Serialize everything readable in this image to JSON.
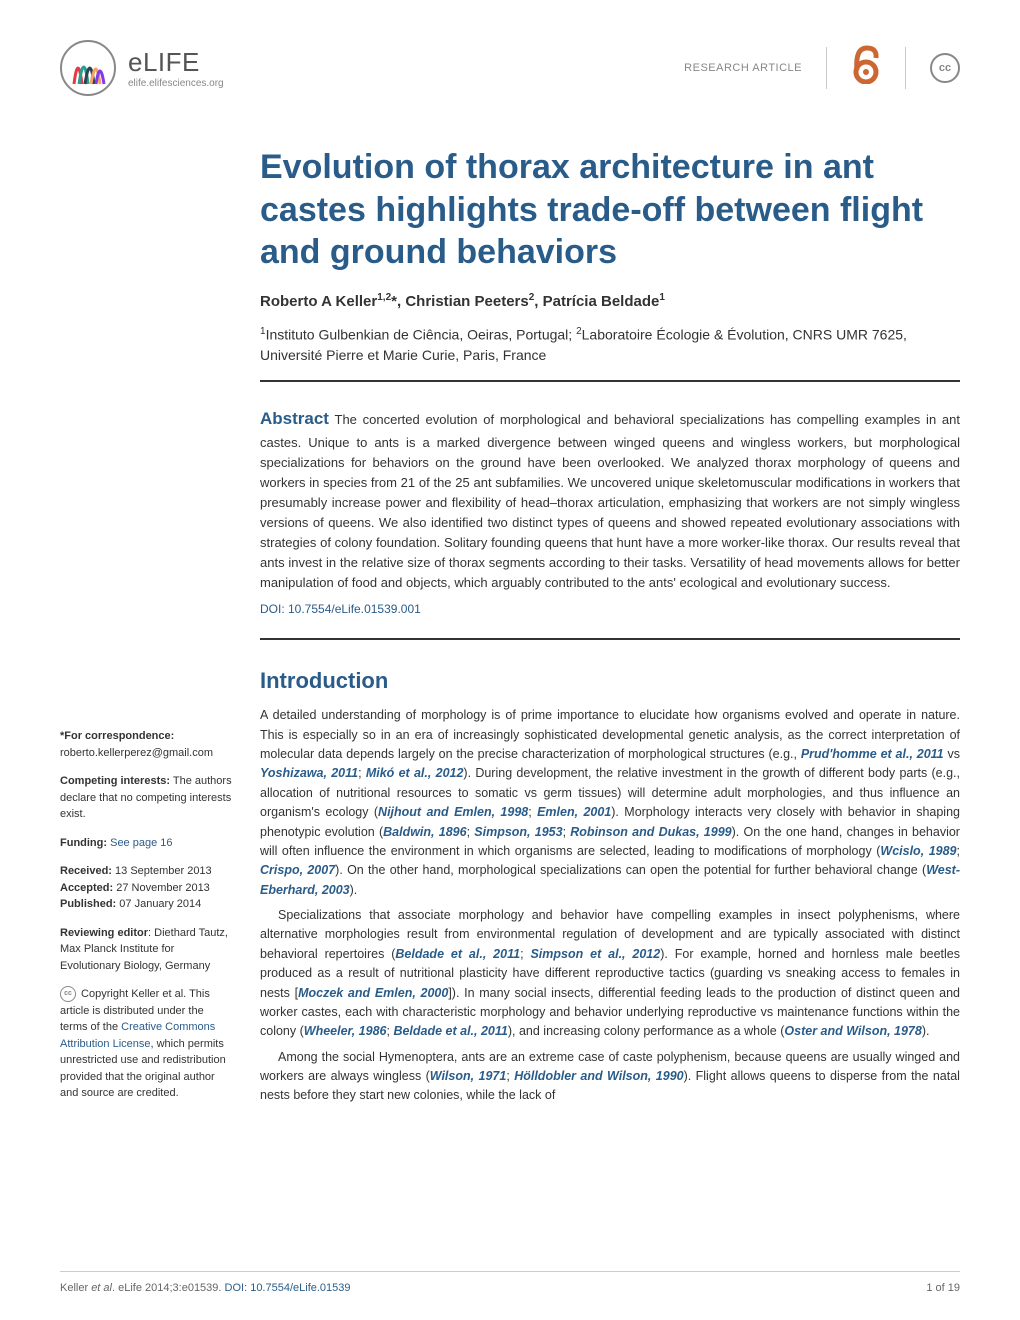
{
  "header": {
    "brand": "eLIFE",
    "domain": "elife.elifesciences.org",
    "article_type": "RESEARCH ARTICLE",
    "oa_symbol": "∂",
    "cc_label": "cc",
    "logo_colors": [
      "#e63946",
      "#f4a261",
      "#2a9d8f",
      "#264653",
      "#8338ec",
      "#457b9d"
    ]
  },
  "title": "Evolution of thorax architecture in ant castes highlights trade-off between flight and ground behaviors",
  "authors_html": "Roberto A Keller<sup>1,2</sup>*, Christian Peeters<sup>2</sup>, Patrícia Beldade<sup>1</sup>",
  "affiliations_html": "<sup>1</sup>Instituto Gulbenkian de Ciência, Oeiras, Portugal; <sup>2</sup>Laboratoire Écologie & Évolution, CNRS UMR 7625, Université Pierre et Marie Curie, Paris, France",
  "abstract": {
    "label": "Abstract",
    "text": "The concerted evolution of morphological and behavioral specializations has compelling examples in ant castes. Unique to ants is a marked divergence between winged queens and wingless workers, but morphological specializations for behaviors on the ground have been overlooked. We analyzed thorax morphology of queens and workers in species from 21 of the 25 ant subfamilies. We uncovered unique skeletomuscular modifications in workers that presumably increase power and flexibility of head–thorax articulation, emphasizing that workers are not simply wingless versions of queens. We also identified two distinct types of queens and showed repeated evolutionary associations with strategies of colony foundation. Solitary founding queens that hunt have a more worker-like thorax. Our results reveal that ants invest in the relative size of thorax segments according to their tasks. Versatility of head movements allows for better manipulation of food and objects, which arguably contributed to the ants' ecological and evolutionary success.",
    "doi": "DOI: 10.7554/eLife.01539.001"
  },
  "intro": {
    "heading": "Introduction",
    "para1_pre": "A detailed understanding of morphology is of prime importance to elucidate how organisms evolved and operate in nature. This is especially so in an era of increasingly sophisticated developmental genetic analysis, as the correct interpretation of molecular data depends largely on the precise characterization of morphological structures (e.g., ",
    "c1": "Prud'homme et al., 2011",
    "t1": " vs ",
    "c2": "Yoshizawa, 2011",
    "t2": "; ",
    "c3": "Mikó et al., 2012",
    "t3": "). During development, the relative investment in the growth of different body parts (e.g., allocation of nutritional resources to somatic vs germ tissues) will determine adult morphologies, and thus influence an organism's ecology (",
    "c4": "Nijhout and Emlen, 1998",
    "t4": "; ",
    "c5": "Emlen, 2001",
    "t5": "). Morphology interacts very closely with behavior in shaping phenotypic evolution (",
    "c6": "Baldwin, 1896",
    "t6": "; ",
    "c7": "Simpson, 1953",
    "t7": "; ",
    "c8": "Robinson and Dukas, 1999",
    "t8": "). On the one hand, changes in behavior will often influence the environment in which organisms are selected, leading to modifications of morphology (",
    "c9": "Wcislo, 1989",
    "t9": "; ",
    "c10": "Crispo, 2007",
    "t10": "). On the other hand, morphological specializations can open the potential for further behavioral change (",
    "c11": "West-Eberhard, 2003",
    "t11": ").",
    "para2_pre": "Specializations that associate morphology and behavior have compelling examples in insect polyphenisms, where alternative morphologies result from environmental regulation of development and are typically associated with distinct behavioral repertoires (",
    "p2c1": "Beldade et al., 2011",
    "p2t1": "; ",
    "p2c2": "Simpson et al., 2012",
    "p2t2": "). For example, horned and hornless male beetles produced as a result of nutritional plasticity have different reproductive tactics (guarding vs sneaking access to females in nests [",
    "p2c3": "Moczek and Emlen, 2000",
    "p2t3": "]). In many social insects, differential feeding leads to the production of distinct queen and worker castes, each with characteristic morphology and behavior underlying reproductive vs maintenance functions within the colony (",
    "p2c4": "Wheeler, 1986",
    "p2t4": "; ",
    "p2c5": "Beldade et al., 2011",
    "p2t5": "), and increasing colony performance as a whole (",
    "p2c6": "Oster and Wilson, 1978",
    "p2t6": ").",
    "para3_pre": "Among the social Hymenoptera, ants are an extreme case of caste polyphenism, because queens are usually winged and workers are always wingless (",
    "p3c1": "Wilson, 1971",
    "p3t1": "; ",
    "p3c2": "Hölldobler and Wilson, 1990",
    "p3t2": "). Flight allows queens to disperse from the natal nests before they start new colonies, while the lack of"
  },
  "sidebar": {
    "corr_label": "*For correspondence:",
    "corr_value": " roberto.kellerperez@gmail.com",
    "competing_label": "Competing interests:",
    "competing_value": " The authors declare that no competing interests exist.",
    "funding_label": "Funding:",
    "funding_link": " See page 16",
    "received_label": "Received:",
    "received_value": " 13 September 2013",
    "accepted_label": "Accepted:",
    "accepted_value": " 27 November 2013",
    "published_label": "Published:",
    "published_value": " 07 January 2014",
    "reviewing_label": "Reviewing editor",
    "reviewing_value": ": Diethard Tautz, Max Planck Institute for Evolutionary Biology, Germany",
    "copyright_pre": " Copyright Keller et al. This article is distributed under the terms of the ",
    "copyright_link": "Creative Commons Attribution License",
    "copyright_post": ", which permits unrestricted use and redistribution provided that the original author and source are credited."
  },
  "footer": {
    "citation_pre": "Keller ",
    "citation_mid": "et al",
    "citation_post": ". eLife 2014;3:e01539. ",
    "doi": "DOI: 10.7554/eLife.01539",
    "page": "1 of 19"
  },
  "colors": {
    "brand_blue": "#2a5c8a",
    "oa_orange": "#cc6633",
    "grey": "#888888",
    "text": "#333333",
    "rule": "#333333",
    "footer_rule": "#cccccc"
  },
  "typography": {
    "title_size_pt": 26,
    "body_size_pt": 9.5,
    "abstract_size_pt": 10,
    "sidebar_size_pt": 8.5
  }
}
